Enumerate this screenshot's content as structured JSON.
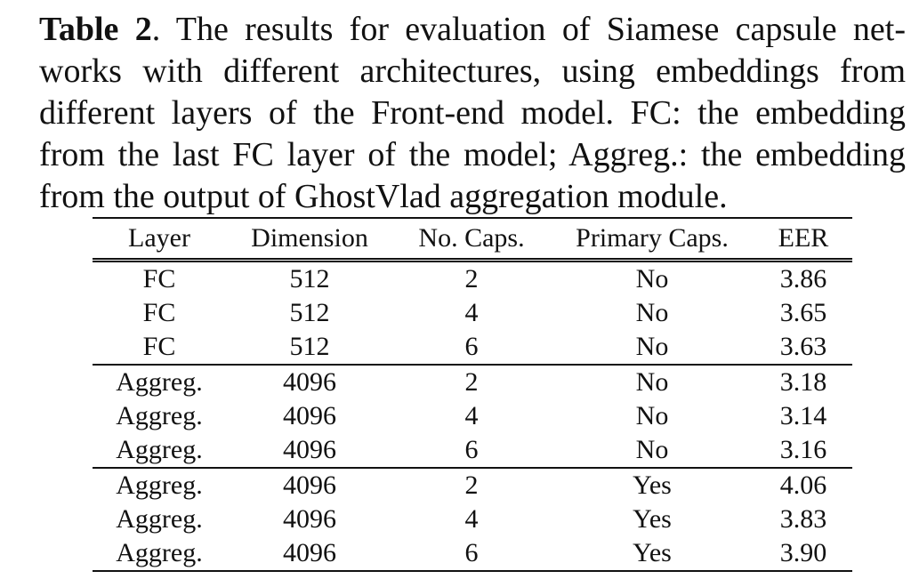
{
  "caption": {
    "label": "Table 2",
    "line1_after_label": ".  The results for evaluation of Siamese capsule net-",
    "line2": "works with different architectures, using embeddings from",
    "line3": "different layers of the Front-end model.  FC: the embedding",
    "line4": "from the last FC layer of the model; Aggreg.: the embedding",
    "line5": "from the output of GhostVlad aggregation module."
  },
  "table": {
    "headers": [
      "Layer",
      "Dimension",
      "No. Caps.",
      "Primary Caps.",
      "EER"
    ],
    "groups": [
      [
        [
          "FC",
          "512",
          "2",
          "No",
          "3.86"
        ],
        [
          "FC",
          "512",
          "4",
          "No",
          "3.65"
        ],
        [
          "FC",
          "512",
          "6",
          "No",
          "3.63"
        ]
      ],
      [
        [
          "Aggreg.",
          "4096",
          "2",
          "No",
          "3.18"
        ],
        [
          "Aggreg.",
          "4096",
          "4",
          "No",
          "3.14"
        ],
        [
          "Aggreg.",
          "4096",
          "6",
          "No",
          "3.16"
        ]
      ],
      [
        [
          "Aggreg.",
          "4096",
          "2",
          "Yes",
          "4.06"
        ],
        [
          "Aggreg.",
          "4096",
          "4",
          "Yes",
          "3.83"
        ],
        [
          "Aggreg.",
          "4096",
          "6",
          "Yes",
          "3.90"
        ]
      ]
    ],
    "best_value": "3.14"
  }
}
